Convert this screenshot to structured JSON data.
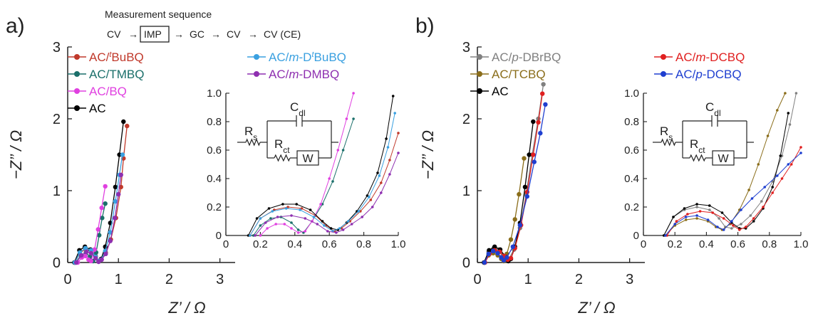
{
  "panel_labels": [
    "a)",
    "b)"
  ],
  "sequence": {
    "title": "Measurement sequence",
    "steps": [
      "CV",
      "IMP",
      "GC",
      "CV",
      "CV (CE)"
    ],
    "boxed_index": 1,
    "arrow": "→"
  },
  "circuit": {
    "rs": "R",
    "rs_sub": "s",
    "rct": "R",
    "rct_sub": "ct",
    "cdl": "C",
    "cdl_sub": "dl",
    "w": "W"
  },
  "chart_data": [
    {
      "type": "line",
      "panel": "a)",
      "xlabel": "Z’ / Ω",
      "ylabel": "−Z’’ / Ω",
      "xlim": [
        0,
        3.3
      ],
      "ylim": [
        0,
        3
      ],
      "xticks": [
        0,
        1,
        2,
        3
      ],
      "yticks": [
        0,
        1,
        2,
        3
      ],
      "legend": "top-left, two columns",
      "series": [
        {
          "name": "AC/tBuBQ",
          "label_parts": [
            "AC/",
            "t",
            "BuBQ"
          ],
          "label_styles": [
            "n",
            "si",
            "n"
          ],
          "color": "#c0392b",
          "x": [
            0.14,
            0.24,
            0.35,
            0.46,
            0.55,
            0.61,
            0.66,
            0.75,
            0.85,
            0.95,
            1.05,
            1.1,
            1.17
          ],
          "y": [
            0,
            0.13,
            0.19,
            0.17,
            0.09,
            0.02,
            0.04,
            0.14,
            0.32,
            0.62,
            1.05,
            1.45,
            1.9
          ]
        },
        {
          "name": "AC/TMBQ",
          "label_parts": [
            "AC/TMBQ"
          ],
          "label_styles": [
            "n"
          ],
          "color": "#1a6f6a",
          "x": [
            0.16,
            0.26,
            0.36,
            0.44,
            0.5,
            0.56,
            0.62,
            0.68,
            0.74
          ],
          "y": [
            0,
            0.1,
            0.14,
            0.08,
            0.02,
            0.14,
            0.38,
            0.62,
            0.82
          ]
        },
        {
          "name": "AC/BQ",
          "label_parts": [
            "AC/BQ"
          ],
          "label_styles": [
            "n"
          ],
          "color": "#e040e0",
          "x": [
            0.2,
            0.28,
            0.35,
            0.41,
            0.46,
            0.53,
            0.6,
            0.67,
            0.74
          ],
          "y": [
            0,
            0.07,
            0.09,
            0.04,
            0.02,
            0.18,
            0.46,
            0.76,
            1.06
          ]
        },
        {
          "name": "AC",
          "label_parts": [
            "AC"
          ],
          "label_styles": [
            "n"
          ],
          "color": "#000000",
          "x": [
            0.13,
            0.23,
            0.34,
            0.45,
            0.55,
            0.61,
            0.66,
            0.74,
            0.84,
            0.94,
            1.02,
            1.1
          ],
          "y": [
            0,
            0.17,
            0.22,
            0.18,
            0.08,
            0.02,
            0.05,
            0.22,
            0.55,
            1.05,
            1.5,
            1.96
          ]
        },
        {
          "name": "AC/m-DtBuBQ",
          "label_parts": [
            "AC/",
            "m",
            "-D",
            "t",
            "BuBQ"
          ],
          "label_styles": [
            "n",
            "i",
            "n",
            "si",
            "n"
          ],
          "color": "#3aa0e0",
          "x": [
            0.14,
            0.24,
            0.35,
            0.46,
            0.55,
            0.61,
            0.66,
            0.74,
            0.84,
            0.94,
            1.02,
            1.08
          ],
          "y": [
            0,
            0.14,
            0.2,
            0.17,
            0.08,
            0.02,
            0.04,
            0.16,
            0.42,
            0.85,
            1.22,
            1.5
          ]
        },
        {
          "name": "AC/m-DMBQ",
          "label_parts": [
            "AC/",
            "m",
            "-DMBQ"
          ],
          "label_styles": [
            "n",
            "i",
            "n"
          ],
          "color": "#8e2fb0",
          "x": [
            0.17,
            0.27,
            0.37,
            0.46,
            0.55,
            0.61,
            0.67,
            0.75,
            0.84,
            0.93,
            1.0,
            1.05
          ],
          "y": [
            0,
            0.1,
            0.15,
            0.13,
            0.06,
            0.01,
            0.04,
            0.12,
            0.3,
            0.62,
            0.95,
            1.22
          ]
        }
      ],
      "inset": {
        "xlim": [
          0,
          1.0
        ],
        "ylim": [
          0,
          1.0
        ],
        "xticks": [
          0,
          0.2,
          0.4,
          0.6,
          0.8,
          1.0
        ],
        "yticks": [
          0,
          0.2,
          0.4,
          0.6,
          0.8,
          1.0
        ],
        "series": [
          {
            "name": "AC/tBuBQ",
            "color": "#c0392b",
            "x": [
              0.14,
              0.2,
              0.28,
              0.36,
              0.44,
              0.52,
              0.58,
              0.63,
              0.67,
              0.72,
              0.78,
              0.84,
              0.9,
              0.95,
              1.0
            ],
            "y": [
              0,
              0.12,
              0.18,
              0.2,
              0.19,
              0.14,
              0.07,
              0.03,
              0.05,
              0.1,
              0.17,
              0.25,
              0.37,
              0.53,
              0.72
            ]
          },
          {
            "name": "AC/TMBQ",
            "color": "#1a6f6a",
            "x": [
              0.16,
              0.2,
              0.26,
              0.32,
              0.38,
              0.42,
              0.45,
              0.5,
              0.56,
              0.62,
              0.68,
              0.74
            ],
            "y": [
              0,
              0.07,
              0.12,
              0.13,
              0.09,
              0.04,
              0.02,
              0.1,
              0.22,
              0.38,
              0.6,
              0.82
            ]
          },
          {
            "name": "AC/BQ",
            "color": "#e040e0",
            "x": [
              0.2,
              0.24,
              0.29,
              0.34,
              0.38,
              0.42,
              0.46,
              0.5,
              0.55,
              0.6,
              0.65,
              0.7,
              0.74
            ],
            "y": [
              0,
              0.05,
              0.08,
              0.08,
              0.05,
              0.02,
              0.03,
              0.1,
              0.22,
              0.4,
              0.6,
              0.82,
              1.0
            ]
          },
          {
            "name": "AC",
            "color": "#000000",
            "x": [
              0.13,
              0.18,
              0.25,
              0.33,
              0.41,
              0.49,
              0.56,
              0.61,
              0.65,
              0.7,
              0.76,
              0.82,
              0.88,
              0.93,
              0.97
            ],
            "y": [
              0,
              0.12,
              0.19,
              0.22,
              0.22,
              0.18,
              0.1,
              0.05,
              0.04,
              0.09,
              0.17,
              0.28,
              0.44,
              0.68,
              0.98
            ]
          },
          {
            "name": "AC/m-DtBuBQ",
            "color": "#3aa0e0",
            "x": [
              0.14,
              0.2,
              0.27,
              0.35,
              0.43,
              0.51,
              0.57,
              0.62,
              0.66,
              0.71,
              0.77,
              0.83,
              0.89,
              0.94,
              0.98
            ],
            "y": [
              0,
              0.12,
              0.17,
              0.19,
              0.18,
              0.13,
              0.07,
              0.03,
              0.05,
              0.1,
              0.17,
              0.27,
              0.42,
              0.62,
              0.86
            ]
          },
          {
            "name": "AC/m-DMBQ",
            "color": "#8e2fb0",
            "x": [
              0.17,
              0.23,
              0.3,
              0.38,
              0.46,
              0.53,
              0.59,
              0.64,
              0.68,
              0.73,
              0.79,
              0.85,
              0.9,
              0.95,
              1.0
            ],
            "y": [
              0,
              0.09,
              0.13,
              0.14,
              0.12,
              0.08,
              0.03,
              0.02,
              0.04,
              0.08,
              0.13,
              0.2,
              0.3,
              0.43,
              0.58
            ]
          }
        ]
      }
    },
    {
      "type": "line",
      "panel": "b)",
      "xlabel": "Z’ / Ω",
      "ylabel": "−Z’’ / Ω",
      "xlim": [
        0,
        3.3
      ],
      "ylim": [
        0,
        3
      ],
      "xticks": [
        0,
        1,
        2,
        3
      ],
      "yticks": [
        0,
        1,
        2,
        3
      ],
      "legend": "top-left, two columns",
      "series": [
        {
          "name": "AC/p-DBrBQ",
          "label_parts": [
            "AC/",
            "p",
            "-DBrBQ"
          ],
          "label_styles": [
            "n",
            "i",
            "n"
          ],
          "color": "#808080",
          "x": [
            0.13,
            0.22,
            0.32,
            0.42,
            0.5,
            0.56,
            0.62,
            0.72,
            0.84,
            0.96,
            1.08,
            1.2,
            1.3
          ],
          "y": [
            0,
            0.15,
            0.2,
            0.18,
            0.1,
            0.04,
            0.05,
            0.18,
            0.48,
            0.95,
            1.5,
            2.0,
            2.48
          ]
        },
        {
          "name": "AC/TCBQ",
          "label_parts": [
            "AC/TCBQ"
          ],
          "label_styles": [
            "n"
          ],
          "color": "#8a6d1a",
          "x": [
            0.14,
            0.22,
            0.31,
            0.4,
            0.47,
            0.52,
            0.58,
            0.66,
            0.74,
            0.82,
            0.92
          ],
          "y": [
            0,
            0.1,
            0.13,
            0.1,
            0.05,
            0.02,
            0.12,
            0.32,
            0.6,
            0.95,
            1.45
          ]
        },
        {
          "name": "AC",
          "label_parts": [
            "AC"
          ],
          "label_styles": [
            "n"
          ],
          "color": "#000000",
          "x": [
            0.13,
            0.23,
            0.34,
            0.45,
            0.55,
            0.61,
            0.66,
            0.74,
            0.84,
            0.94,
            1.02,
            1.1
          ],
          "y": [
            0,
            0.17,
            0.22,
            0.18,
            0.08,
            0.02,
            0.05,
            0.22,
            0.55,
            1.05,
            1.5,
            1.96
          ]
        },
        {
          "name": "AC/m-DCBQ",
          "label_parts": [
            "AC/",
            "m",
            "-DCBQ"
          ],
          "label_styles": [
            "n",
            "i",
            "n"
          ],
          "color": "#e02020",
          "x": [
            0.15,
            0.24,
            0.34,
            0.44,
            0.53,
            0.6,
            0.66,
            0.74,
            0.86,
            0.98,
            1.1,
            1.2,
            1.28
          ],
          "y": [
            0,
            0.12,
            0.17,
            0.15,
            0.09,
            0.04,
            0.06,
            0.2,
            0.52,
            0.98,
            1.5,
            1.95,
            2.35
          ]
        },
        {
          "name": "AC/p-DCBQ",
          "label_parts": [
            "AC/",
            "p",
            "-DCBQ"
          ],
          "label_styles": [
            "n",
            "i",
            "n"
          ],
          "color": "#1f3fd0",
          "x": [
            0.14,
            0.22,
            0.31,
            0.4,
            0.47,
            0.52,
            0.58,
            0.7,
            0.84,
            0.98,
            1.12,
            1.24,
            1.34
          ],
          "y": [
            0,
            0.12,
            0.16,
            0.13,
            0.07,
            0.03,
            0.07,
            0.22,
            0.52,
            0.92,
            1.4,
            1.8,
            2.2
          ]
        }
      ],
      "inset": {
        "xlim": [
          0,
          1.0
        ],
        "ylim": [
          0,
          1.0
        ],
        "xticks": [
          0,
          0.2,
          0.4,
          0.6,
          0.8,
          1.0
        ],
        "yticks": [
          0,
          0.2,
          0.4,
          0.6,
          0.8,
          1.0
        ],
        "series": [
          {
            "name": "AC/p-DBrBQ",
            "color": "#808080",
            "x": [
              0.13,
              0.19,
              0.26,
              0.34,
              0.42,
              0.48,
              0.52,
              0.56,
              0.62,
              0.68,
              0.75,
              0.82,
              0.88,
              0.93,
              0.97
            ],
            "y": [
              0,
              0.13,
              0.18,
              0.2,
              0.18,
              0.12,
              0.06,
              0.05,
              0.08,
              0.14,
              0.24,
              0.38,
              0.56,
              0.78,
              1.0
            ]
          },
          {
            "name": "AC/TCBQ",
            "color": "#8a6d1a",
            "x": [
              0.14,
              0.2,
              0.27,
              0.34,
              0.41,
              0.46,
              0.5,
              0.55,
              0.61,
              0.67,
              0.73,
              0.79,
              0.85,
              0.9
            ],
            "y": [
              0,
              0.07,
              0.11,
              0.12,
              0.1,
              0.06,
              0.04,
              0.08,
              0.18,
              0.32,
              0.5,
              0.7,
              0.88,
              1.0
            ]
          },
          {
            "name": "AC",
            "color": "#000000",
            "x": [
              0.13,
              0.19,
              0.26,
              0.34,
              0.42,
              0.5,
              0.56,
              0.61,
              0.65,
              0.7,
              0.76,
              0.82,
              0.87,
              0.92
            ],
            "y": [
              0,
              0.13,
              0.19,
              0.22,
              0.21,
              0.16,
              0.09,
              0.05,
              0.05,
              0.1,
              0.19,
              0.34,
              0.56,
              0.86
            ]
          },
          {
            "name": "AC/m-DCBQ",
            "color": "#e02020",
            "x": [
              0.15,
              0.21,
              0.28,
              0.36,
              0.44,
              0.51,
              0.57,
              0.61,
              0.65,
              0.7,
              0.76,
              0.82,
              0.88,
              0.94,
              1.0
            ],
            "y": [
              0,
              0.1,
              0.15,
              0.17,
              0.16,
              0.12,
              0.07,
              0.04,
              0.06,
              0.12,
              0.2,
              0.3,
              0.4,
              0.5,
              0.62
            ]
          },
          {
            "name": "AC/p-DCBQ",
            "color": "#1f3fd0",
            "x": [
              0.14,
              0.2,
              0.27,
              0.34,
              0.41,
              0.47,
              0.51,
              0.56,
              0.62,
              0.69,
              0.77,
              0.85,
              0.92,
              1.0
            ],
            "y": [
              0,
              0.08,
              0.13,
              0.14,
              0.11,
              0.06,
              0.04,
              0.1,
              0.18,
              0.26,
              0.34,
              0.42,
              0.5,
              0.58
            ]
          }
        ]
      }
    }
  ]
}
